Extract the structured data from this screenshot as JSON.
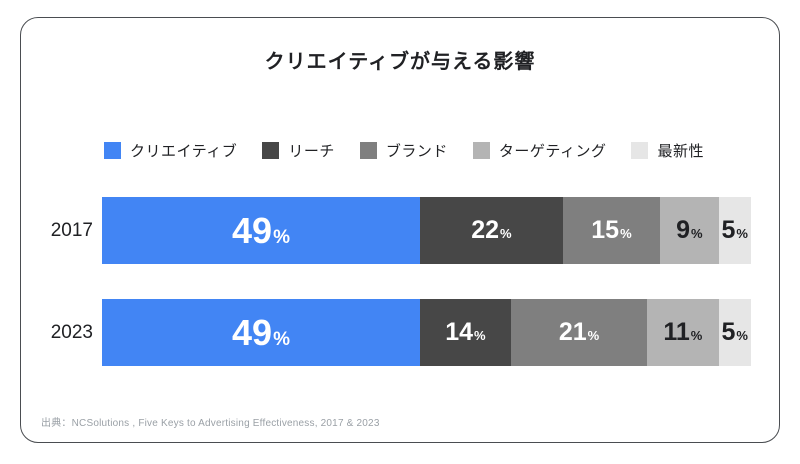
{
  "title": "クリエイティブが与える影響",
  "source": "出典：NCSolutions , Five Keys to Advertising Effectiveness, 2017 & 2023",
  "chart_data": {
    "type": "bar",
    "stacked": true,
    "orientation": "horizontal",
    "title": "クリエイティブが与える影響",
    "legend_position": "top",
    "grid": false,
    "xlim": [
      0,
      100
    ],
    "value_suffix": "%",
    "categories": [
      "2017",
      "2023"
    ],
    "series": [
      {
        "name": "クリエイティブ",
        "color": "#4285F4",
        "label_color": "#ffffff",
        "values": [
          49,
          49
        ]
      },
      {
        "name": "リーチ",
        "color": "#474747",
        "label_color": "#ffffff",
        "values": [
          22,
          14
        ]
      },
      {
        "name": "ブランド",
        "color": "#7f7f7f",
        "label_color": "#ffffff",
        "values": [
          15,
          21
        ]
      },
      {
        "name": "ターゲティング",
        "color": "#b4b4b4",
        "label_color": "#202124",
        "values": [
          9,
          11
        ]
      },
      {
        "name": "最新性",
        "color": "#e6e6e6",
        "label_color": "#202124",
        "values": [
          5,
          5
        ]
      }
    ]
  }
}
